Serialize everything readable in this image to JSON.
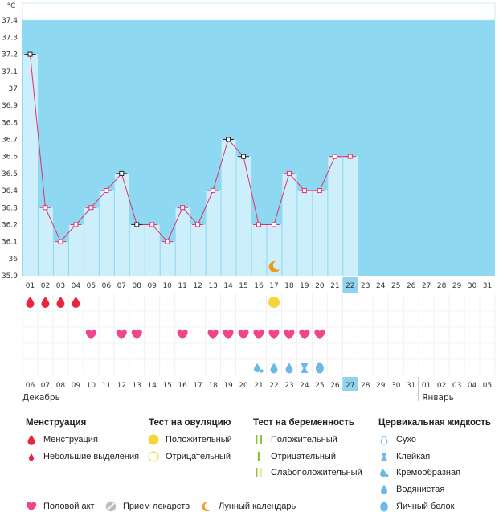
{
  "chart_data": {
    "type": "bar",
    "title": "",
    "ylabel": "°C",
    "ylim": [
      35.9,
      37.5
    ],
    "y_ticks": [
      "35.9",
      "36",
      "36.1",
      "36.2",
      "36.3",
      "36.4",
      "36.5",
      "36.6",
      "36.7",
      "36.8",
      "36.9",
      "37",
      "37.1",
      "37.2",
      "37.3",
      "37.4"
    ],
    "cycle_days": [
      "01",
      "02",
      "03",
      "04",
      "05",
      "06",
      "07",
      "08",
      "09",
      "10",
      "11",
      "12",
      "13",
      "14",
      "15",
      "16",
      "17",
      "18",
      "19",
      "20",
      "21",
      "22",
      "23",
      "24",
      "25",
      "26",
      "27",
      "28",
      "29",
      "30",
      "31"
    ],
    "highlight_day": "22",
    "temperatures": [
      37.2,
      36.3,
      36.1,
      36.2,
      36.3,
      36.4,
      36.5,
      36.2,
      36.2,
      36.1,
      36.3,
      36.2,
      36.4,
      36.7,
      36.6,
      36.2,
      36.2,
      36.5,
      36.4,
      36.4,
      36.6,
      36.6
    ],
    "marker_types": [
      "b",
      "p",
      "p",
      "p",
      "p",
      "p",
      "b",
      "b",
      "p",
      "p",
      "p",
      "p",
      "p",
      "b",
      "b",
      "p",
      "p",
      "p",
      "p",
      "p",
      "p",
      "p"
    ],
    "moon_day": "17",
    "menstruation_days": [
      "01",
      "02",
      "03",
      "04"
    ],
    "ovulation_test_positive_days": [
      "17"
    ],
    "intercourse_days": [
      "05",
      "07",
      "08",
      "11",
      "13",
      "14",
      "15",
      "16",
      "17",
      "18",
      "19",
      "20"
    ],
    "cervical_fluid": [
      {
        "day": "16",
        "kind": "creamy"
      },
      {
        "day": "17",
        "kind": "watery"
      },
      {
        "day": "18",
        "kind": "watery"
      },
      {
        "day": "19",
        "kind": "sticky"
      },
      {
        "day": "20",
        "kind": "eggwhite"
      }
    ],
    "date_labels": [
      "06",
      "07",
      "08",
      "09",
      "10",
      "11",
      "12",
      "13",
      "14",
      "15",
      "16",
      "17",
      "18",
      "19",
      "20",
      "21",
      "22",
      "23",
      "24",
      "25",
      "26",
      "27",
      "28",
      "29",
      "30",
      "31",
      "01",
      "02",
      "03",
      "04",
      "05"
    ],
    "red_dates_index": [
      0,
      6,
      7,
      13,
      14,
      20
    ],
    "highlight_date_index": 21,
    "month_left": "Декабрь",
    "month_right": "Январь",
    "month_divider_index": 26
  },
  "legend": {
    "menstruation": {
      "title": "Менструация",
      "items": [
        "Менструация",
        "Небольшие выделения"
      ]
    },
    "ovulation": {
      "title": "Тест на овуляцию",
      "items": [
        "Положительный",
        "Отрицательный"
      ]
    },
    "pregnancy": {
      "title": "Тест на беременность",
      "items": [
        "Положительный",
        "Отрицательный",
        "Слабоположительный"
      ]
    },
    "cervical": {
      "title": "Цервикальная жидкость",
      "items": [
        "Сухо",
        "Клейкая",
        "Кремообразная",
        "Водянистая",
        "Яичный белок"
      ]
    },
    "bottom": [
      "Половой акт",
      "Прием лекарств",
      "Лунный календарь"
    ]
  },
  "colors": {
    "plot_bg": "#8fd8f2",
    "bar": "#cdeefb",
    "line": "#e0306d",
    "drop": "#e8253f",
    "heart": "#f0458c",
    "ovulation": "#f5d63a",
    "fluid": "#6cb8e6",
    "moon": "#f09a1a",
    "highlight": "#8fd3ee",
    "red_text": "#d0202f"
  }
}
